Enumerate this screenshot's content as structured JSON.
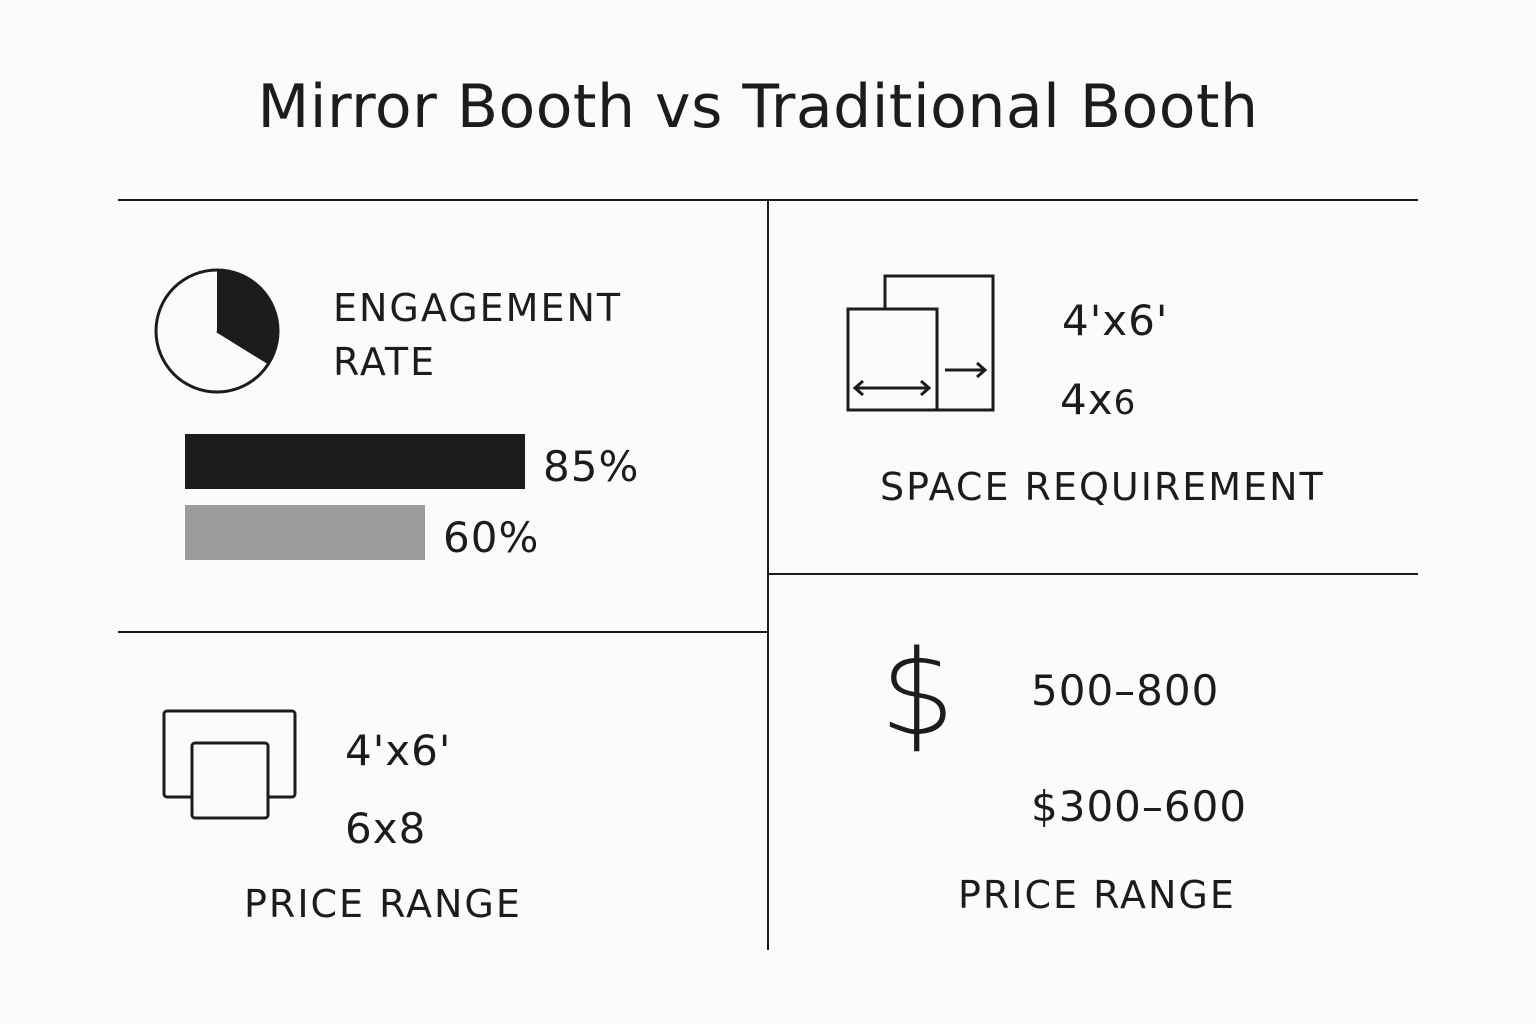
{
  "title": "Mirror Booth vs Traditional Booth",
  "engagement": {
    "label_line1": "ENGAGEMENT",
    "label_line2": "RATE",
    "pie_icon": "pie-chart-icon",
    "bars": [
      {
        "value": 85,
        "label": "85%",
        "color": "#1c1c1c"
      },
      {
        "value": 60,
        "label": "60%",
        "color": "#9b9b9b"
      }
    ]
  },
  "space": {
    "icon": "resize-frames-icon",
    "value1": "4'x6'",
    "value2_main": "4x",
    "value2_small": "6",
    "label": "SPACE REQUIREMENT"
  },
  "bottom_left": {
    "icon": "stacked-frames-icon",
    "value1": "4'x6'",
    "value2": "6x8",
    "label": "PRICE RANGE"
  },
  "bottom_right": {
    "icon": "dollar-icon",
    "value1": "500–800",
    "value2": "$300–600",
    "label": "PRICE RANGE"
  },
  "colors": {
    "ink": "#1c1c1c",
    "gray_bar": "#9b9b9b",
    "background": "#fbfbf9"
  }
}
